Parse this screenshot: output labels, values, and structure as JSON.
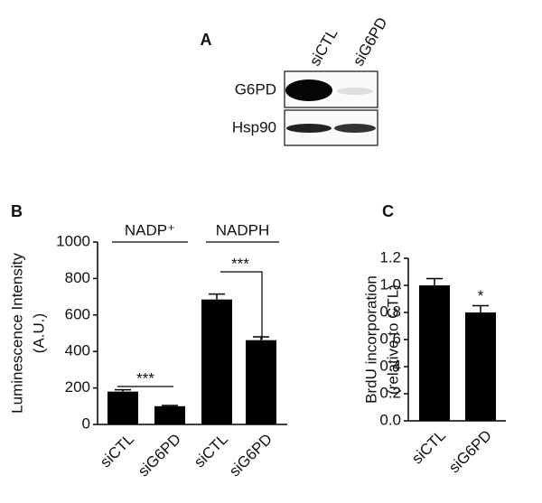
{
  "blot": {
    "panel": "A",
    "lanes": [
      "siCTL",
      "siG6PD"
    ],
    "rows": [
      "G6PD",
      "Hsp90"
    ]
  },
  "chart_data": [
    {
      "type": "bar",
      "panel": "B",
      "ylabel": [
        "Luminescence Intensity",
        "(A.U.)"
      ],
      "categories": [
        "siCTL",
        "siG6PD",
        "siCTL",
        "siG6PD"
      ],
      "values": [
        180,
        100,
        685,
        462
      ],
      "errors": [
        10,
        4,
        30,
        18
      ],
      "color": "#000000",
      "group_labels": [
        "NADP⁺",
        "NADPH"
      ],
      "annotations": [
        "***",
        "***"
      ],
      "ylim": [
        0,
        1000
      ],
      "yticks": [
        0,
        200,
        400,
        600,
        800,
        1000
      ]
    },
    {
      "type": "bar",
      "panel": "C",
      "ylabel": [
        "BrdU incorporation",
        "(relative to CTL)"
      ],
      "categories": [
        "siCTL",
        "siG6PD"
      ],
      "values": [
        1.0,
        0.8
      ],
      "errors": [
        0.05,
        0.05
      ],
      "color": "#000000",
      "annotations": [
        "*"
      ],
      "ylim": [
        0,
        1.2
      ],
      "yticks": [
        {
          "value": 0,
          "label": "0.0"
        },
        0.2,
        0.4,
        0.6,
        0.8,
        {
          "value": 1,
          "label": "1.0"
        },
        1.2
      ]
    }
  ]
}
